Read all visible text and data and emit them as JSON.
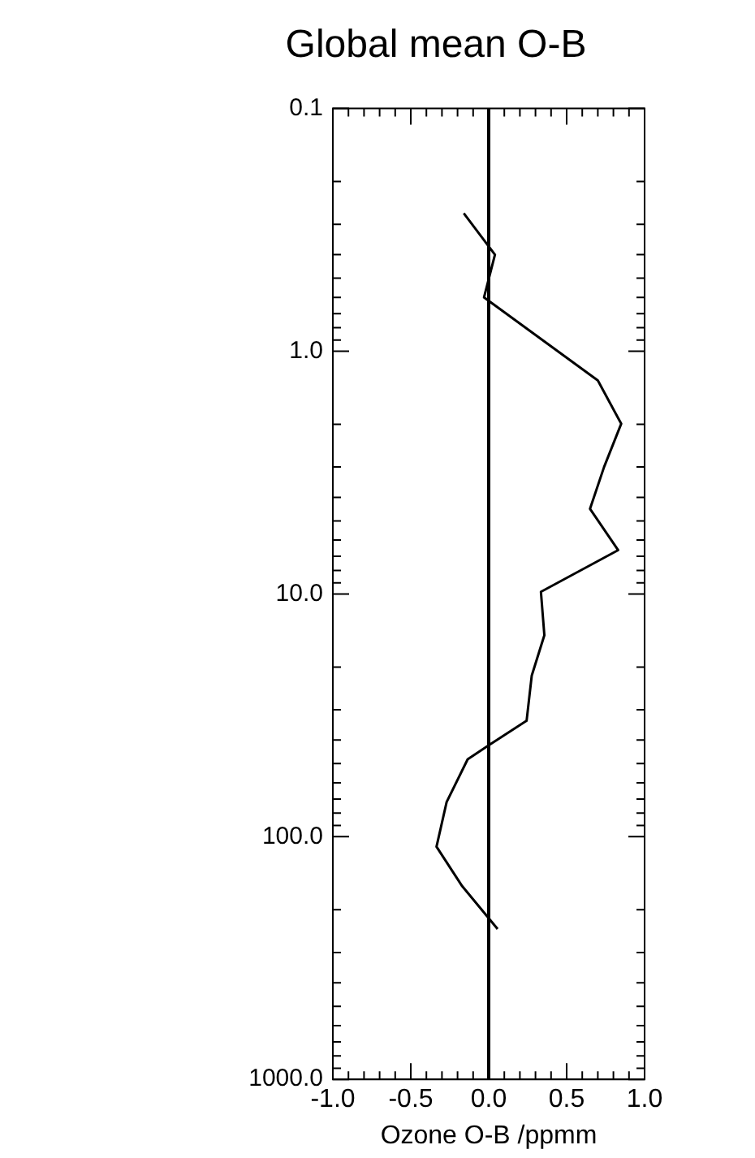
{
  "chart_data": {
    "type": "line",
    "title": "Global mean O-B",
    "xlabel": "Ozone O-B /ppmm",
    "series": [
      {
        "color": "#000000",
        "x": [
          -0.16,
          0.04,
          -0.03,
          0.7,
          0.85,
          0.74,
          0.65,
          0.83,
          0.335,
          0.357,
          0.276,
          0.243,
          0.0,
          -0.135,
          -0.27,
          -0.335,
          -0.17,
          0.057
        ],
        "values": [
          0.27,
          0.4,
          0.6,
          1.32,
          1.99,
          3.0,
          4.46,
          6.6,
          9.8,
          14.8,
          21.7,
          33.3,
          42,
          48,
          72,
          110,
          160,
          240
        ]
      }
    ],
    "xlim": [
      -1,
      1
    ],
    "xticks": [
      {
        "value": -1,
        "label": "-1.0"
      },
      {
        "value": -0.9,
        "label": null
      },
      {
        "value": -0.8,
        "label": null
      },
      {
        "value": -0.7,
        "label": null
      },
      {
        "value": -0.6,
        "label": null
      },
      {
        "value": -0.5,
        "label": "-0.5"
      },
      {
        "value": -0.4,
        "label": null
      },
      {
        "value": -0.3,
        "label": null
      },
      {
        "value": -0.2,
        "label": null
      },
      {
        "value": -0.1,
        "label": null
      },
      {
        "value": 0,
        "label": "0.0"
      },
      {
        "value": 0.1,
        "label": null
      },
      {
        "value": 0.2,
        "label": null
      },
      {
        "value": 0.3,
        "label": null
      },
      {
        "value": 0.4,
        "label": null
      },
      {
        "value": 0.5,
        "label": "0.5"
      },
      {
        "value": 0.6,
        "label": null
      },
      {
        "value": 0.7,
        "label": null
      },
      {
        "value": 0.8,
        "label": null
      },
      {
        "value": 0.9,
        "label": null
      },
      {
        "value": 1,
        "label": "1.0"
      }
    ],
    "ylim": [
      1000,
      0.1
    ],
    "yticks": [
      {
        "value": 0.1,
        "label": "0.1"
      },
      {
        "value": 0.2,
        "label": null
      },
      {
        "value": 0.3,
        "label": null
      },
      {
        "value": 0.4,
        "label": null
      },
      {
        "value": 0.5,
        "label": null
      },
      {
        "value": 0.6,
        "label": null
      },
      {
        "value": 0.7,
        "label": null
      },
      {
        "value": 0.8,
        "label": null
      },
      {
        "value": 0.9,
        "label": null
      },
      {
        "value": 1,
        "label": "1.0"
      },
      {
        "value": 2,
        "label": null
      },
      {
        "value": 3,
        "label": null
      },
      {
        "value": 4,
        "label": null
      },
      {
        "value": 5,
        "label": null
      },
      {
        "value": 6,
        "label": null
      },
      {
        "value": 7,
        "label": null
      },
      {
        "value": 8,
        "label": null
      },
      {
        "value": 9,
        "label": null
      },
      {
        "value": 10,
        "label": "10.0"
      },
      {
        "value": 20,
        "label": null
      },
      {
        "value": 30,
        "label": null
      },
      {
        "value": 40,
        "label": null
      },
      {
        "value": 50,
        "label": null
      },
      {
        "value": 60,
        "label": null
      },
      {
        "value": 70,
        "label": null
      },
      {
        "value": 80,
        "label": null
      },
      {
        "value": 90,
        "label": null
      },
      {
        "value": 100,
        "label": "100.0"
      },
      {
        "value": 200,
        "label": null
      },
      {
        "value": 300,
        "label": null
      },
      {
        "value": 400,
        "label": null
      },
      {
        "value": 500,
        "label": null
      },
      {
        "value": 600,
        "label": null
      },
      {
        "value": 700,
        "label": null
      },
      {
        "value": 800,
        "label": null
      },
      {
        "value": 900,
        "label": null
      },
      {
        "value": 1000,
        "label": "1000.0"
      }
    ],
    "log": "y",
    "grid": false,
    "legend": false,
    "marker": "none",
    "line_style": "solid",
    "ref_lines": [
      {
        "axis": "x",
        "value": 0,
        "color": "#000000"
      }
    ]
  }
}
